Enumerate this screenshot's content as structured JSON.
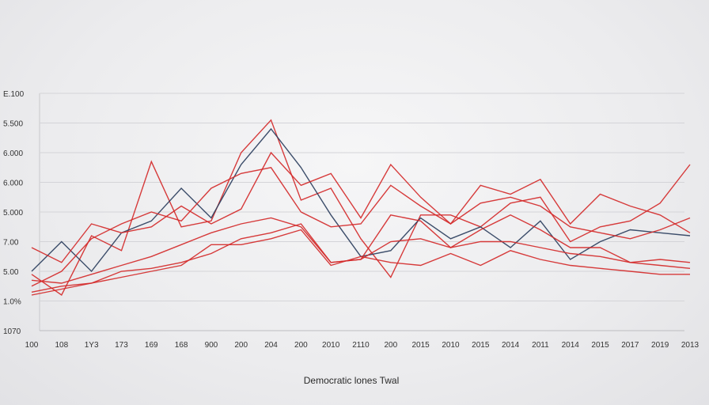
{
  "chart_data": {
    "type": "line",
    "title": "",
    "xlabel": "Democratic lones Twal",
    "ylabel": "",
    "categories": [
      "100",
      "108",
      "1Y3",
      "173",
      "169",
      "168",
      "900",
      "200",
      "204",
      "200",
      "2010",
      "2110",
      "200",
      "2015",
      "2010",
      "2015",
      "2014",
      "2011",
      "2014",
      "2015",
      "2017",
      "2019",
      "2013"
    ],
    "y_tick_labels": [
      "1070",
      "1.0%",
      "5.00",
      "7.00",
      "5.000",
      "6.000",
      "6.000",
      "5.500",
      "E.100"
    ],
    "ylim": [
      0,
      8
    ],
    "grid": true,
    "legend": "none",
    "colors": {
      "red": "#d42a2a",
      "blue": "#2d3f5e"
    },
    "series": [
      {
        "color": "red",
        "values": [
          1.9,
          1.2,
          3.2,
          2.7,
          5.7,
          3.5,
          3.7,
          6.0,
          7.1,
          4.4,
          4.8,
          3.1,
          1.8,
          3.9,
          3.9,
          3.5,
          4.3,
          4.5,
          3.0,
          3.5,
          3.7,
          4.3,
          5.6
        ]
      },
      {
        "color": "blue",
        "values": [
          2.0,
          3.0,
          2.0,
          3.3,
          3.7,
          4.8,
          3.8,
          5.6,
          6.8,
          5.5,
          3.9,
          2.5,
          2.7,
          3.8,
          3.1,
          3.5,
          2.8,
          3.7,
          2.4,
          3.0,
          3.4,
          3.3,
          3.2
        ]
      },
      {
        "color": "red",
        "values": [
          2.8,
          2.3,
          3.6,
          3.3,
          3.5,
          4.2,
          3.6,
          4.1,
          6.0,
          4.9,
          5.3,
          3.8,
          5.6,
          4.5,
          3.6,
          4.9,
          4.6,
          5.1,
          3.6,
          4.6,
          4.2,
          3.9,
          3.3
        ]
      },
      {
        "color": "red",
        "values": [
          1.5,
          2.0,
          3.1,
          3.6,
          4.0,
          3.7,
          4.8,
          5.3,
          5.5,
          4.0,
          3.5,
          3.6,
          4.9,
          4.2,
          3.6,
          4.3,
          4.5,
          4.2,
          3.5,
          3.3,
          3.1,
          3.4,
          3.8
        ]
      },
      {
        "color": "red",
        "values": [
          1.7,
          1.6,
          1.9,
          2.2,
          2.5,
          2.9,
          3.3,
          3.6,
          3.8,
          3.5,
          2.3,
          2.4,
          3.9,
          3.7,
          2.8,
          3.4,
          3.9,
          3.4,
          2.8,
          2.8,
          2.3,
          2.4,
          2.3
        ]
      },
      {
        "color": "red",
        "values": [
          1.3,
          1.5,
          1.6,
          2.0,
          2.1,
          2.3,
          2.6,
          3.1,
          3.3,
          3.6,
          2.3,
          2.4,
          3.0,
          3.1,
          2.8,
          3.0,
          3.0,
          2.8,
          2.6,
          2.5,
          2.3,
          2.2,
          2.1
        ]
      },
      {
        "color": "red",
        "values": [
          1.2,
          1.4,
          1.6,
          1.8,
          2.0,
          2.2,
          2.9,
          2.9,
          3.1,
          3.4,
          2.2,
          2.5,
          2.3,
          2.2,
          2.6,
          2.2,
          2.7,
          2.4,
          2.2,
          2.1,
          2.0,
          1.9,
          1.9
        ]
      }
    ]
  }
}
